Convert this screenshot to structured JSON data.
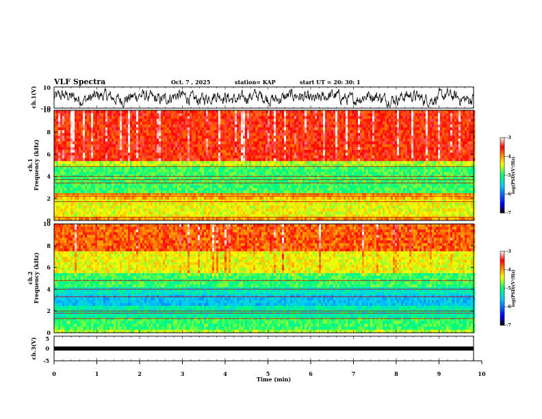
{
  "header": {
    "title": "VLF Spectra",
    "date": "Oct. 7 , 2025",
    "station": "station= KAP",
    "start_ut": "start UT = 20: 30: 1"
  },
  "colors": {
    "waveform": "#000000",
    "axis": "#000000",
    "colormap": [
      "#000000",
      "#0000ff",
      "#00c8ff",
      "#00ff80",
      "#ffff00",
      "#ff8000",
      "#ff0000",
      "#ffffff"
    ]
  },
  "chart_data": [
    {
      "type": "line",
      "name": "ch1-waveform",
      "ylabel": "ch.1(V)",
      "ylim": [
        -10,
        10
      ],
      "yticks": [
        "10",
        "-10"
      ],
      "xlim": [
        0,
        9.8
      ],
      "description_values": "noise waveform oscillating roughly between -8 and +8 V"
    },
    {
      "type": "heatmap",
      "name": "ch1-spectrogram",
      "ylabel_line1": "ch.1",
      "ylabel_line2": "Frequency (kHz)",
      "ylim": [
        0,
        10
      ],
      "yticks": [
        "0",
        "2",
        "4",
        "6",
        "8",
        "10"
      ],
      "xlim": [
        0,
        9.8
      ],
      "bands": [
        {
          "from": 0.0,
          "to": 0.3,
          "level": -4.0
        },
        {
          "from": 0.3,
          "to": 1.9,
          "level": -4.4
        },
        {
          "from": 1.9,
          "to": 2.5,
          "level": -4.1
        },
        {
          "from": 2.5,
          "to": 4.9,
          "level": -4.9
        },
        {
          "from": 4.9,
          "to": 5.4,
          "level": -4.6
        },
        {
          "from": 5.4,
          "to": 10.0,
          "level": -3.6
        }
      ],
      "lines_khz": [
        0.3,
        1.7,
        2.2,
        2.4,
        3.4,
        3.7,
        4.0,
        4.9
      ],
      "colorbar": {
        "label": "log(PSD)(V²/Hz)",
        "ticks": [
          "-3",
          "-4",
          "-5",
          "-6",
          "-7"
        ],
        "range": [
          -7,
          -3
        ]
      }
    },
    {
      "type": "heatmap",
      "name": "ch2-spectrogram",
      "ylabel_line1": "ch.2",
      "ylabel_line2": "Frequency (kHz)",
      "ylim": [
        0,
        10
      ],
      "yticks": [
        "0",
        "2",
        "4",
        "6",
        "8",
        "10"
      ],
      "xlim": [
        0,
        9.8
      ],
      "bands": [
        {
          "from": 0.0,
          "to": 0.3,
          "level": -4.6
        },
        {
          "from": 0.3,
          "to": 1.4,
          "level": -4.9
        },
        {
          "from": 1.4,
          "to": 2.5,
          "level": -5.2
        },
        {
          "from": 2.5,
          "to": 3.5,
          "level": -5.6
        },
        {
          "from": 3.5,
          "to": 4.2,
          "level": -5.3
        },
        {
          "from": 4.2,
          "to": 5.5,
          "level": -4.9
        },
        {
          "from": 5.5,
          "to": 7.5,
          "level": -4.4
        },
        {
          "from": 7.5,
          "to": 10.0,
          "level": -3.8
        }
      ],
      "lines_khz": [
        1.3,
        1.8,
        2.0,
        3.3,
        4.0,
        4.8
      ],
      "colorbar": {
        "label": "log(PSD)(V²/Hz)",
        "ticks": [
          "-3",
          "-4",
          "-5",
          "-6",
          "-7"
        ],
        "range": [
          -7,
          -3
        ]
      }
    },
    {
      "type": "line",
      "name": "ch3-signal",
      "ylabel": "ch.3(V)",
      "ylim": [
        -5,
        5
      ],
      "yticks": [
        "5",
        "0",
        "-5"
      ],
      "xlim": [
        0,
        9.8
      ],
      "description_values": "thick band near 0 V (roughly -0.4 to +0.4 V)",
      "band": [
        -0.4,
        0.4
      ]
    },
    {
      "type": "axis",
      "name": "time-axis",
      "xlabel": "Time (min)",
      "xlim": [
        0,
        10
      ],
      "xticks": [
        "0",
        "1",
        "2",
        "3",
        "4",
        "5",
        "6",
        "7",
        "8",
        "9",
        "10"
      ]
    }
  ]
}
